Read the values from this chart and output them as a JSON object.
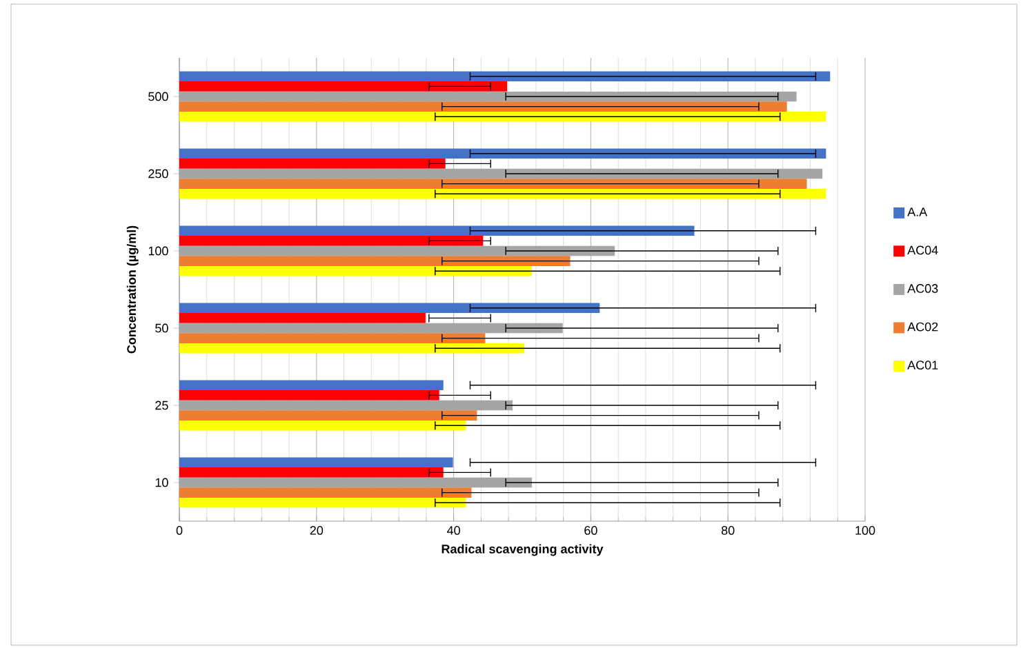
{
  "chart_data": {
    "type": "bar",
    "orientation": "horizontal",
    "categories": [
      "500",
      "250",
      "100",
      "50",
      "25",
      "10"
    ],
    "xlabel": "Radical scavenging activity",
    "ylabel": "Concentration (µg/ml)",
    "xlim": [
      0,
      100
    ],
    "xticks": [
      0,
      20,
      40,
      60,
      80,
      100
    ],
    "grid": "x",
    "legend": "right",
    "series": [
      {
        "name": "A.A",
        "color": "#4472c4",
        "values": [
          94.9,
          94.3,
          75.1,
          61.3,
          38.5,
          39.9
        ],
        "errors": [
          [
            42.4,
            92.8
          ],
          [
            42.4,
            92.8
          ],
          [
            42.4,
            92.8
          ],
          [
            42.4,
            92.8
          ],
          [
            42.4,
            92.8
          ],
          [
            42.4,
            92.8
          ]
        ]
      },
      {
        "name": "AC04",
        "color": "#ff0000",
        "values": [
          47.8,
          38.8,
          44.3,
          35.9,
          37.9,
          38.5
        ],
        "errors": [
          [
            36.4,
            45.4
          ],
          [
            36.4,
            45.4
          ],
          [
            36.4,
            45.4
          ],
          [
            36.4,
            45.4
          ],
          [
            36.4,
            45.4
          ],
          [
            36.4,
            45.4
          ]
        ]
      },
      {
        "name": "AC03",
        "color": "#a5a5a5",
        "values": [
          90.0,
          93.8,
          63.5,
          55.9,
          48.6,
          51.4
        ],
        "errors": [
          [
            47.6,
            87.3
          ],
          [
            47.6,
            87.3
          ],
          [
            47.6,
            87.3
          ],
          [
            47.6,
            87.3
          ],
          [
            47.6,
            87.3
          ],
          [
            47.6,
            87.3
          ]
        ]
      },
      {
        "name": "AC02",
        "color": "#ed7d31",
        "values": [
          88.6,
          91.5,
          57.0,
          44.6,
          43.4,
          42.6
        ],
        "errors": [
          [
            38.3,
            84.5
          ],
          [
            38.3,
            84.5
          ],
          [
            38.3,
            84.5
          ],
          [
            38.3,
            84.5
          ],
          [
            38.3,
            84.5
          ],
          [
            38.3,
            84.5
          ]
        ]
      },
      {
        "name": "AC01",
        "color": "#ffff00",
        "values": [
          94.3,
          94.3,
          51.4,
          50.3,
          41.8,
          41.8
        ],
        "errors": [
          [
            37.3,
            87.6
          ],
          [
            37.3,
            87.6
          ],
          [
            37.3,
            87.6
          ],
          [
            37.3,
            87.6
          ],
          [
            37.3,
            87.6
          ],
          [
            37.3,
            87.6
          ]
        ]
      }
    ]
  }
}
